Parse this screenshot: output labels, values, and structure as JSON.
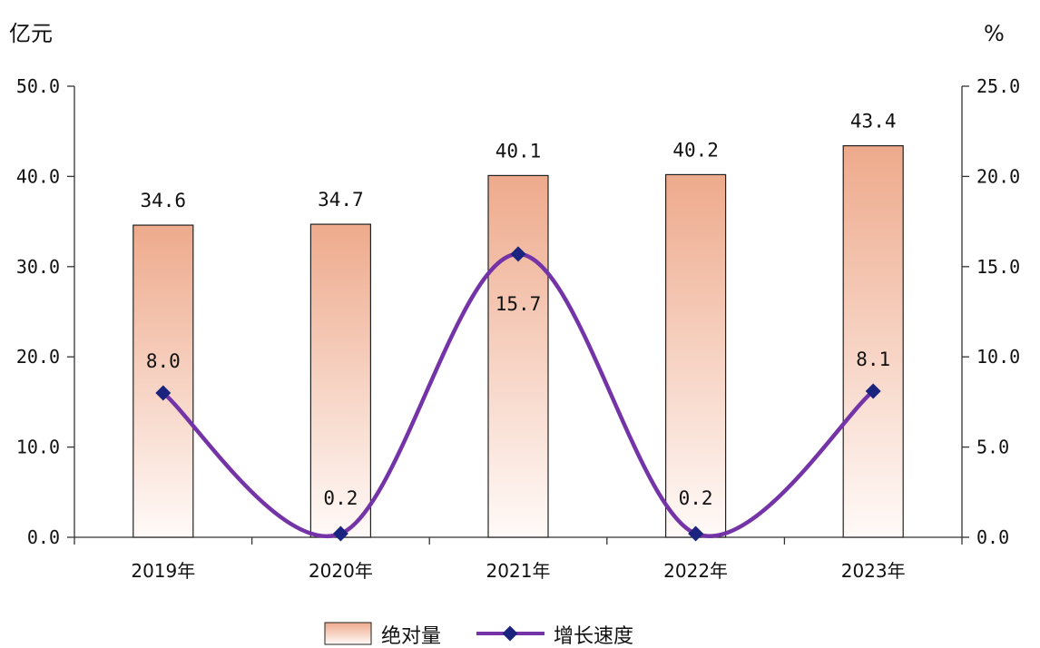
{
  "chart_data": {
    "type": "bar",
    "categories": [
      "2019年",
      "2020年",
      "2021年",
      "2022年",
      "2023年"
    ],
    "series": [
      {
        "name": "绝对量",
        "type": "bar",
        "axis": "left",
        "values": [
          34.6,
          34.7,
          40.1,
          40.2,
          43.4
        ],
        "labels": [
          "34.6",
          "34.7",
          "40.1",
          "40.2",
          "43.4"
        ]
      },
      {
        "name": "增长速度",
        "type": "line",
        "axis": "right",
        "values": [
          8.0,
          0.2,
          15.7,
          0.2,
          8.1
        ],
        "labels": [
          "8.0",
          "0.2",
          "15.7",
          "0.2",
          "8.1"
        ]
      }
    ],
    "y_left": {
      "unit": "亿元",
      "ylim": [
        0,
        50
      ],
      "ticks": [
        "0.0",
        "10.0",
        "20.0",
        "30.0",
        "40.0",
        "50.0"
      ]
    },
    "y_right": {
      "unit": "%",
      "ylim": [
        0,
        25
      ],
      "ticks": [
        "0.0",
        "5.0",
        "10.0",
        "15.0",
        "20.0",
        "25.0"
      ]
    },
    "grid": false,
    "legend_position": "bottom",
    "colors": {
      "bar_top": "#eeaa8c",
      "bar_bottom": "#fffaf8",
      "bar_stroke": "#222222",
      "line": "#7433a6",
      "marker": "#1a237e"
    }
  }
}
